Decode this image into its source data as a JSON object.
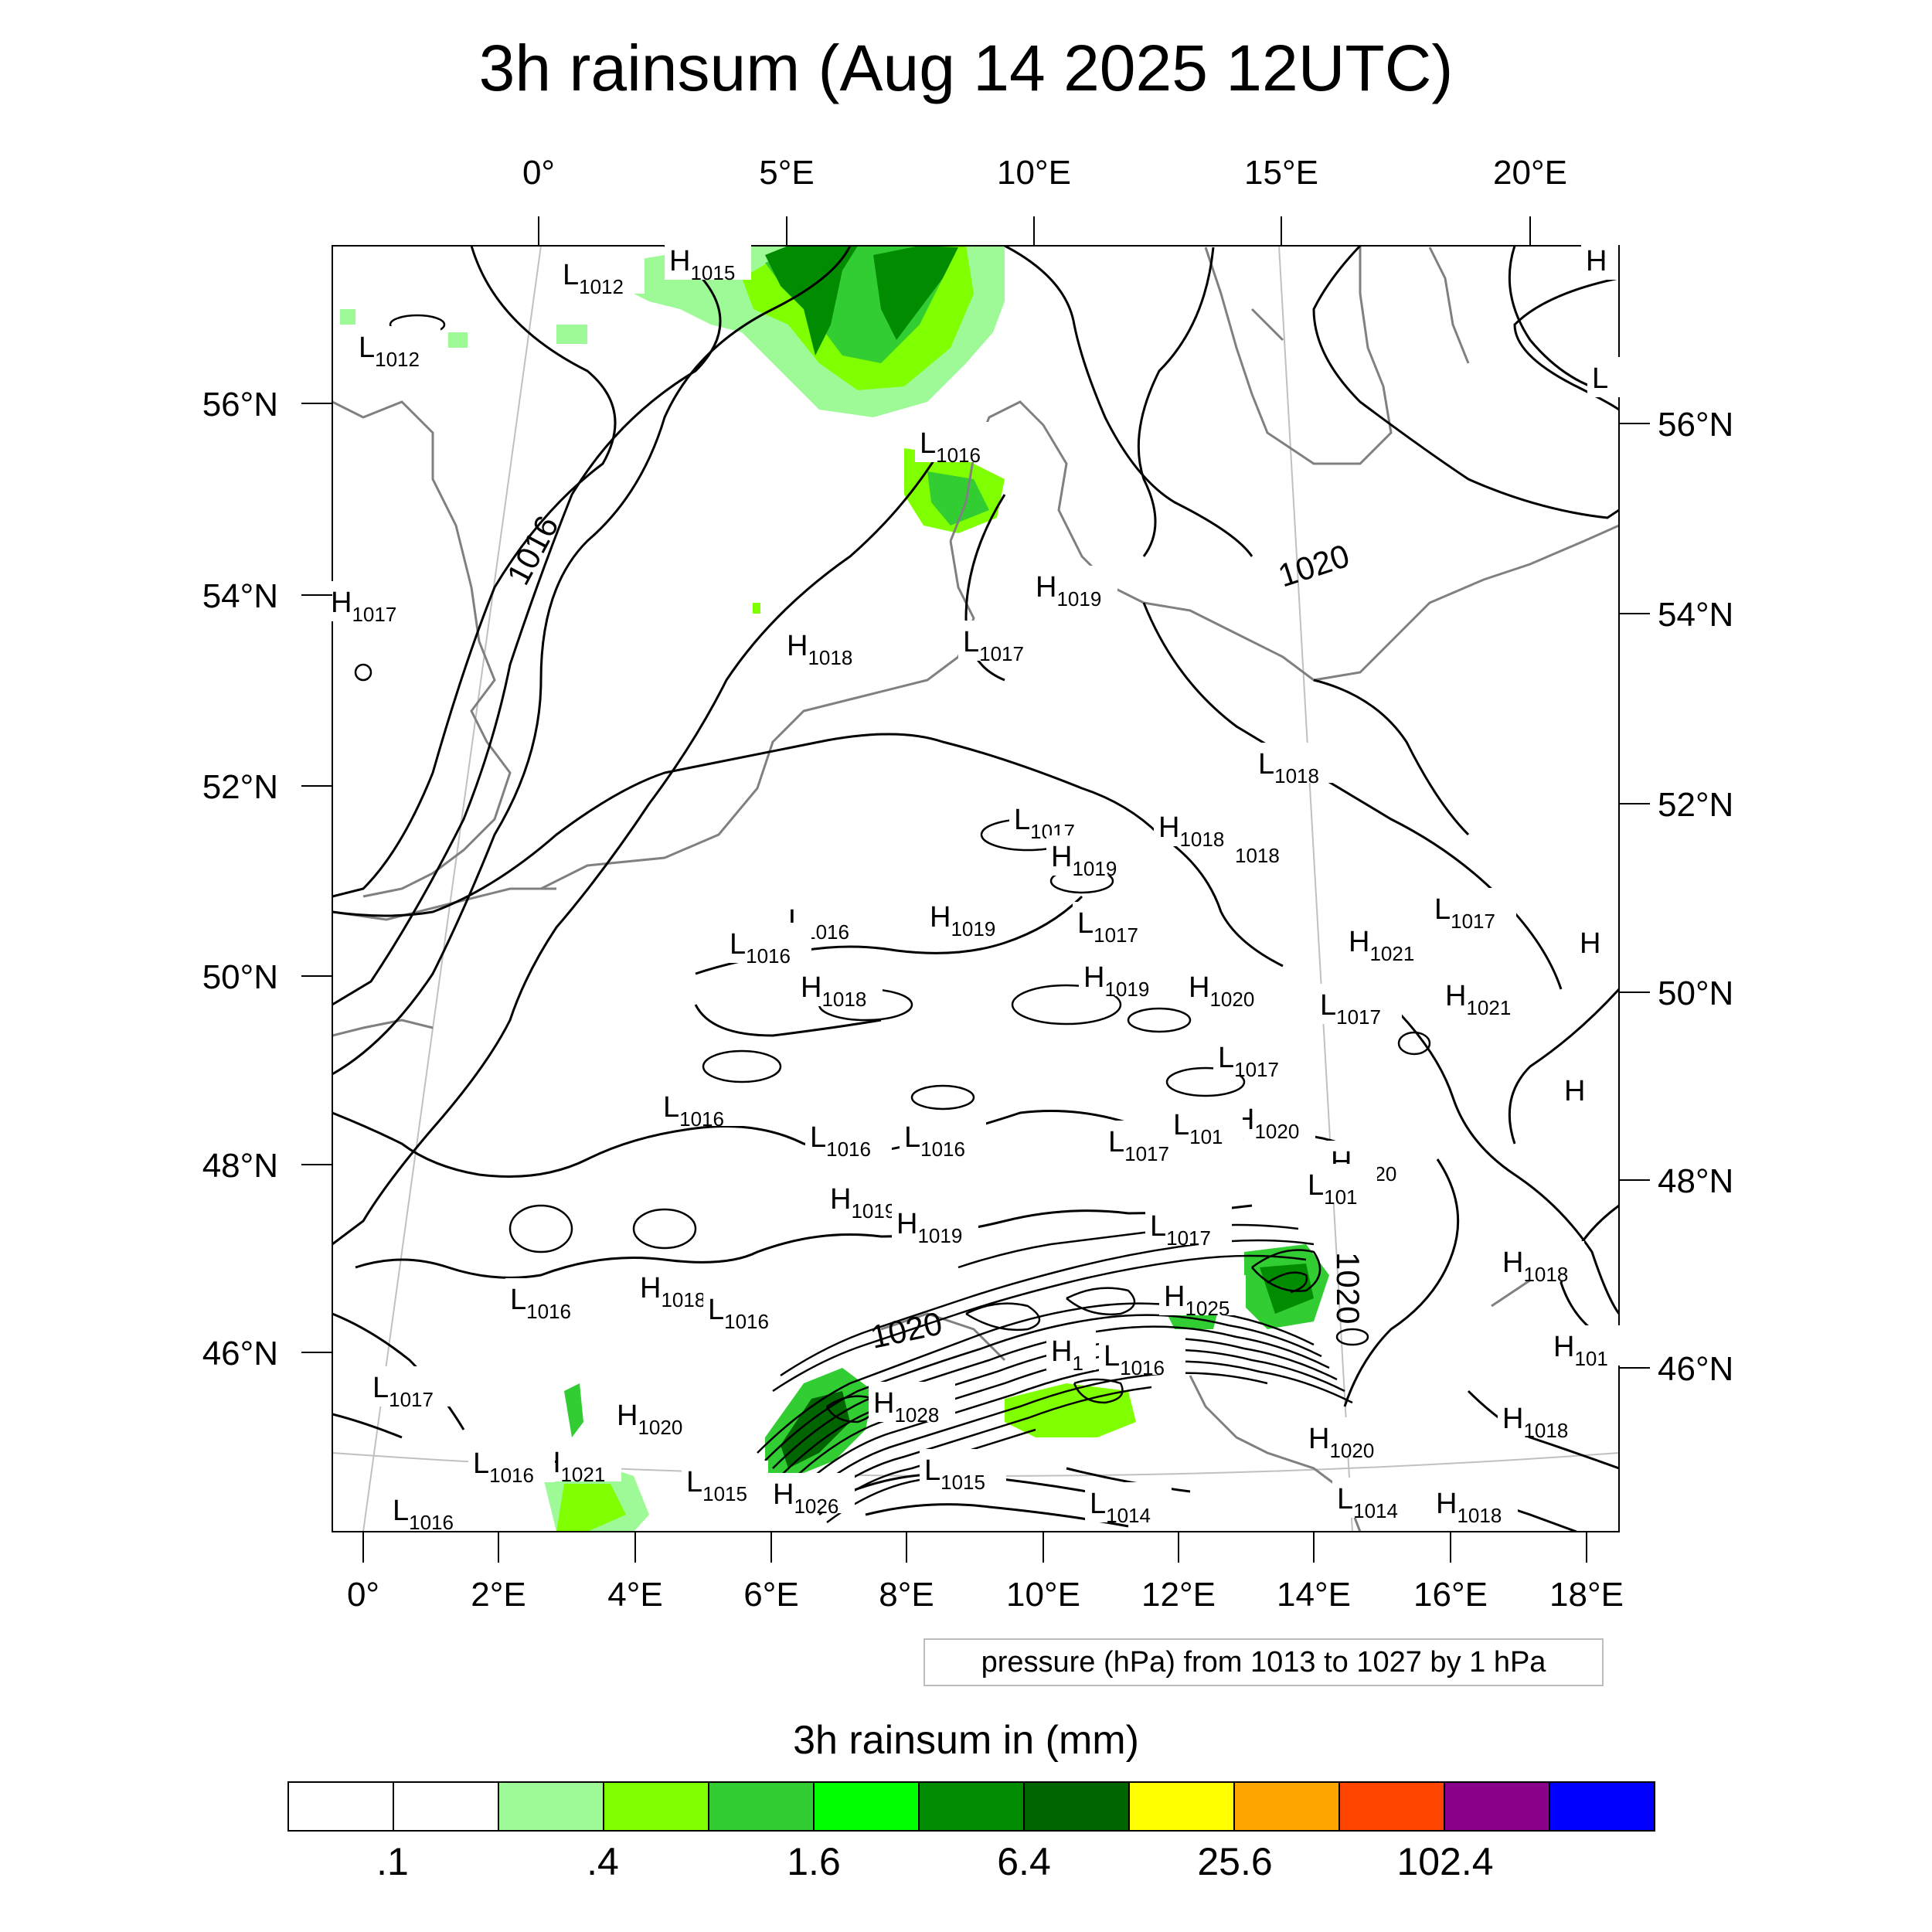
{
  "title": "3h rainsum (Aug 14 2025 12UTC)",
  "top_lon_labels": [
    "0°",
    "5°E",
    "10°E",
    "15°E",
    "20°E"
  ],
  "left_lat_labels": [
    "56°N",
    "54°N",
    "52°N",
    "50°N",
    "48°N",
    "46°N"
  ],
  "right_lat_labels": [
    "56°N",
    "54°N",
    "52°N",
    "50°N",
    "48°N",
    "46°N"
  ],
  "bottom_lon_labels": [
    "0°",
    "2°E",
    "4°E",
    "6°E",
    "8°E",
    "10°E",
    "12°E",
    "14°E",
    "16°E",
    "18°E"
  ],
  "isobar_labels": [
    "1016",
    "1020",
    "1020",
    "1020"
  ],
  "pressure_centers": [
    {
      "type": "L",
      "value": "1012"
    },
    {
      "type": "H",
      "value": "1015"
    },
    {
      "type": "H",
      "value": ""
    },
    {
      "type": "L",
      "value": "1012"
    },
    {
      "type": "L",
      "value": ""
    },
    {
      "type": "L",
      "value": "1016"
    },
    {
      "type": "H",
      "value": "1017"
    },
    {
      "type": "H",
      "value": "1019"
    },
    {
      "type": "L",
      "value": "1017"
    },
    {
      "type": "H",
      "value": "1018"
    },
    {
      "type": "L",
      "value": "1018"
    },
    {
      "type": "H",
      "value": "1018"
    },
    {
      "type": "",
      "value": "1018"
    },
    {
      "type": "L",
      "value": "1017"
    },
    {
      "type": "H",
      "value": "1019"
    },
    {
      "type": "L",
      "value": "1016"
    },
    {
      "type": "H",
      "value": "1019"
    },
    {
      "type": "L",
      "value": "1017"
    },
    {
      "type": "L",
      "value": "1016"
    },
    {
      "type": "H",
      "value": "1018"
    },
    {
      "type": "H",
      "value": "1019"
    },
    {
      "type": "H",
      "value": "1020"
    },
    {
      "type": "H",
      "value": "1021"
    },
    {
      "type": "L",
      "value": "1017"
    },
    {
      "type": "L",
      "value": "1017"
    },
    {
      "type": "H",
      "value": "1021"
    },
    {
      "type": "H",
      "value": ""
    },
    {
      "type": "L",
      "value": "1017"
    },
    {
      "type": "L",
      "value": "1016"
    },
    {
      "type": "H",
      "value": "1020"
    },
    {
      "type": "L",
      "value": "1016"
    },
    {
      "type": "L",
      "value": "1016"
    },
    {
      "type": "L",
      "value": "1017"
    },
    {
      "type": "L",
      "value": "101"
    },
    {
      "type": "H",
      "value": "1020"
    },
    {
      "type": "H",
      "value": "1019"
    },
    {
      "type": "H",
      "value": "1019"
    },
    {
      "type": "L",
      "value": "1017"
    },
    {
      "type": "L",
      "value": "101"
    },
    {
      "type": "H",
      "value": "1018"
    },
    {
      "type": "L",
      "value": "1016"
    },
    {
      "type": "H",
      "value": "1018"
    },
    {
      "type": "L",
      "value": "1016"
    },
    {
      "type": "H",
      "value": "1025"
    },
    {
      "type": "H",
      "value": "1"
    },
    {
      "type": "L",
      "value": "1016"
    },
    {
      "type": "H",
      "value": "1028"
    },
    {
      "type": "L",
      "value": "1017"
    },
    {
      "type": "H",
      "value": "1020"
    },
    {
      "type": "H",
      "value": "1021"
    },
    {
      "type": "L",
      "value": "1016"
    },
    {
      "type": "L",
      "value": "1015"
    },
    {
      "type": "H",
      "value": "1026"
    },
    {
      "type": "L",
      "value": "1015"
    },
    {
      "type": "L",
      "value": "1014"
    },
    {
      "type": "H",
      "value": "1020"
    },
    {
      "type": "H",
      "value": "1018"
    },
    {
      "type": "L",
      "value": "1016"
    },
    {
      "type": "H",
      "value": "1018"
    },
    {
      "type": "L",
      "value": "1014"
    },
    {
      "type": "H",
      "value": "1018"
    },
    {
      "type": "H",
      "value": "101"
    },
    {
      "type": "H",
      "value": ""
    },
    {
      "type": "H",
      "value": ""
    }
  ],
  "contour_info": "pressure (hPa) from 1013 to 1027 by 1 hPa",
  "legend": {
    "title": "3h rainsum in (mm)",
    "colors": [
      "#ffffff",
      "#ffffff",
      "#9efa96",
      "#80ff00",
      "#32cd32",
      "#00ff00",
      "#008b00",
      "#006400",
      "#ffff00",
      "#ffa500",
      "#ff4500",
      "#8b008b",
      "#0000ff"
    ],
    "labels": [
      ".1",
      ".4",
      "1.6",
      "6.4",
      "25.6",
      "102.4"
    ]
  },
  "colors": {
    "rain_light": "#9efa96",
    "rain_mid": "#32cd32",
    "rain_green": "#00ff00",
    "rain_dark": "#008b00",
    "rain_darkest": "#006400",
    "coast": "#808080",
    "isobar": "#000000"
  }
}
